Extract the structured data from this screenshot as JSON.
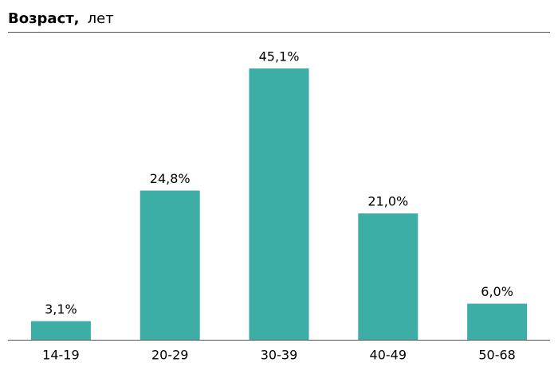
{
  "chart_data": {
    "type": "bar",
    "title": "Возраст,",
    "title_unit": "лет",
    "categories": [
      "14-19",
      "20-29",
      "30-39",
      "40-49",
      "50-68"
    ],
    "values": [
      3.1,
      24.8,
      45.1,
      21.0,
      6.0
    ],
    "value_labels": [
      "3,1%",
      "24,8%",
      "45,1%",
      "21,0%",
      "6,0%"
    ],
    "color": "#3daea5"
  }
}
